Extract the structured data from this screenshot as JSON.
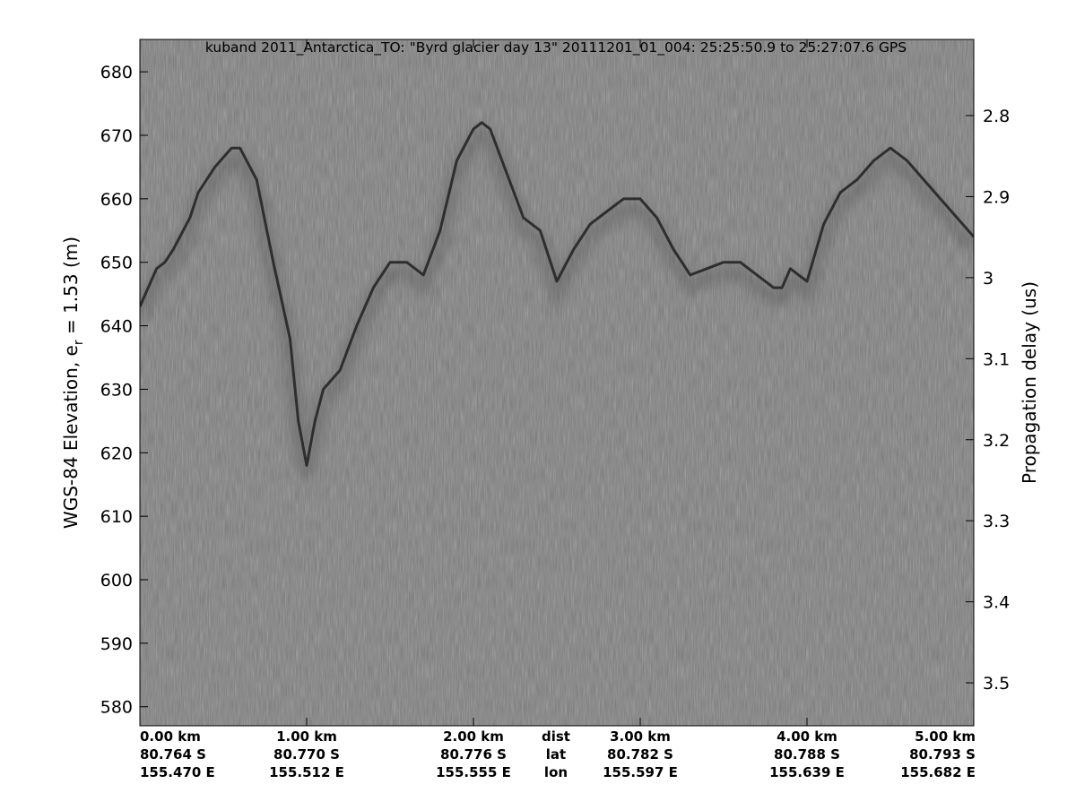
{
  "chart_data": {
    "type": "line",
    "title": "kuband 2011_Antarctica_TO: \"Byrd glacier day 13\"  20111201_01_004: 25:25:50.9 to 25:27:07.6 GPS",
    "ylabel": {
      "text": "WGS-84 Elevation, e",
      "subscript": "r",
      "suffix": " = 1.53 (m)"
    },
    "y2label": "Propagation delay (us)",
    "xlim": [
      0,
      5
    ],
    "xticks": [
      {
        "value": 0,
        "label": "0.00 km"
      },
      {
        "value": 1,
        "label": "1.00 km"
      },
      {
        "value": 2,
        "label": "2.00 km"
      },
      {
        "value": 3,
        "label": "3.00 km"
      },
      {
        "value": 4,
        "label": "4.00 km"
      },
      {
        "value": 5,
        "label": "5.00 km"
      }
    ],
    "xtick_lat": [
      "80.764 S",
      "80.770 S",
      "80.776 S",
      "80.782 S",
      "80.788 S",
      "80.793 S"
    ],
    "xtick_lon": [
      "155.470 E",
      "155.512 E",
      "155.555 E",
      "155.597 E",
      "155.639 E",
      "155.682 E"
    ],
    "row_labels": [
      "dist",
      "lat",
      "lon"
    ],
    "ylim": [
      577.0,
      685.1
    ],
    "yticks": [
      580,
      590,
      600,
      610,
      620,
      630,
      640,
      650,
      660,
      670,
      680
    ],
    "y2lim": [
      3.553,
      2.706
    ],
    "y2ticks": [
      2.8,
      2.9,
      3,
      3.1,
      3.2,
      3.3,
      3.4,
      3.5
    ],
    "background_color": "#7d7d7d",
    "x": [
      0,
      0.1,
      0.15,
      0.2,
      0.3,
      0.35,
      0.45,
      0.55,
      0.6,
      0.7,
      0.8,
      0.9,
      0.95,
      1.0,
      1.05,
      1.1,
      1.2,
      1.3,
      1.4,
      1.5,
      1.6,
      1.7,
      1.8,
      1.9,
      2.0,
      2.05,
      2.1,
      2.2,
      2.3,
      2.4,
      2.5,
      2.6,
      2.7,
      2.8,
      2.9,
      3.0,
      3.1,
      3.2,
      3.3,
      3.4,
      3.5,
      3.6,
      3.7,
      3.8,
      3.85,
      3.9,
      3.95,
      4.0,
      4.1,
      4.2,
      4.3,
      4.4,
      4.5,
      4.6,
      4.7,
      4.8,
      4.9,
      5.0
    ],
    "series": [
      {
        "color": "#2e2e2e",
        "values": [
          643,
          649,
          650,
          652,
          657,
          661,
          665,
          668,
          668,
          663,
          650,
          638,
          625,
          618,
          625,
          630,
          633,
          640,
          646,
          650,
          650,
          648,
          655,
          666,
          671,
          672,
          671,
          664,
          657,
          655,
          647,
          652,
          656,
          658,
          660,
          660,
          657,
          652,
          648,
          649,
          650,
          650,
          648,
          646,
          646,
          649,
          648,
          647,
          656,
          661,
          663,
          666,
          668,
          666,
          663,
          660,
          657,
          654
        ]
      }
    ]
  }
}
